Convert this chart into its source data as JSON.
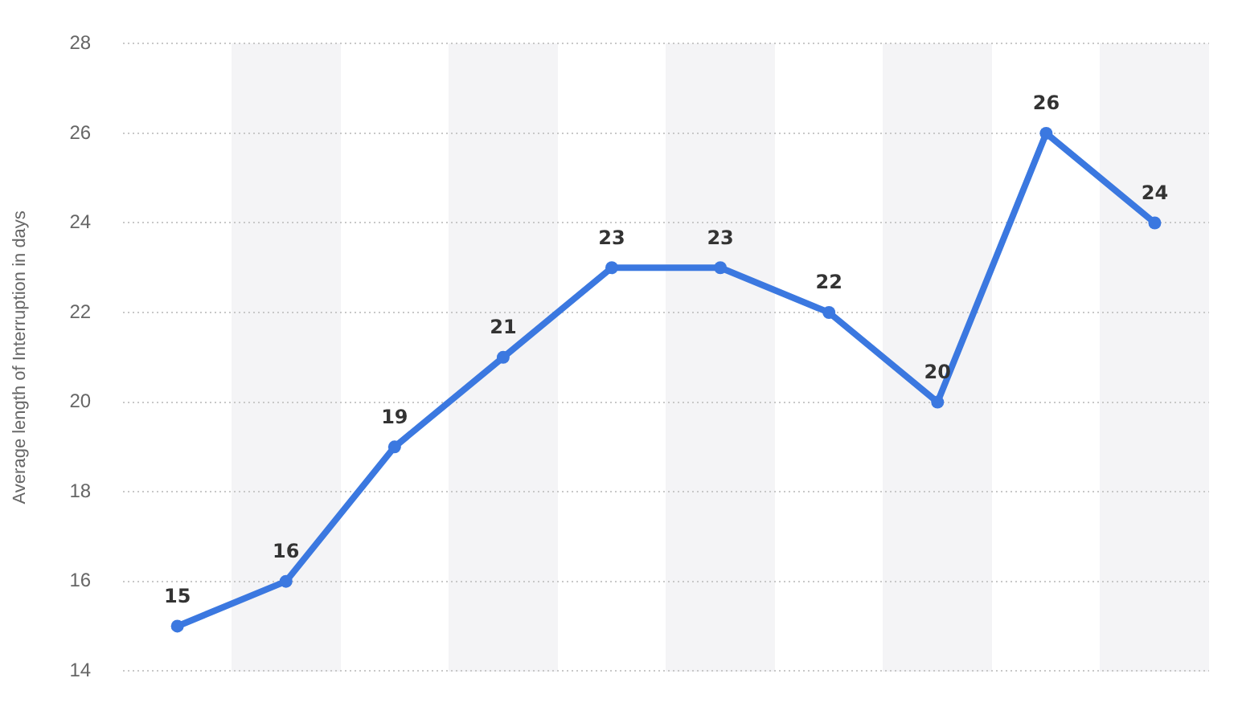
{
  "chart_data": {
    "type": "line",
    "ylabel": "Average length of Interruption in days",
    "categories": [
      null,
      null,
      null,
      null,
      null,
      null,
      null,
      null,
      null,
      null
    ],
    "series": [
      {
        "color": "#3b78e0",
        "values": [
          15,
          16,
          19,
          21,
          23,
          23,
          22,
          20,
          26,
          24
        ]
      }
    ],
    "ylim": [
      14,
      28
    ],
    "yticks": [
      14,
      16,
      18,
      20,
      22,
      24,
      26,
      28
    ],
    "grid": "y",
    "legend": false,
    "marker": "circle",
    "line_style": "solid",
    "data_labels": true
  }
}
